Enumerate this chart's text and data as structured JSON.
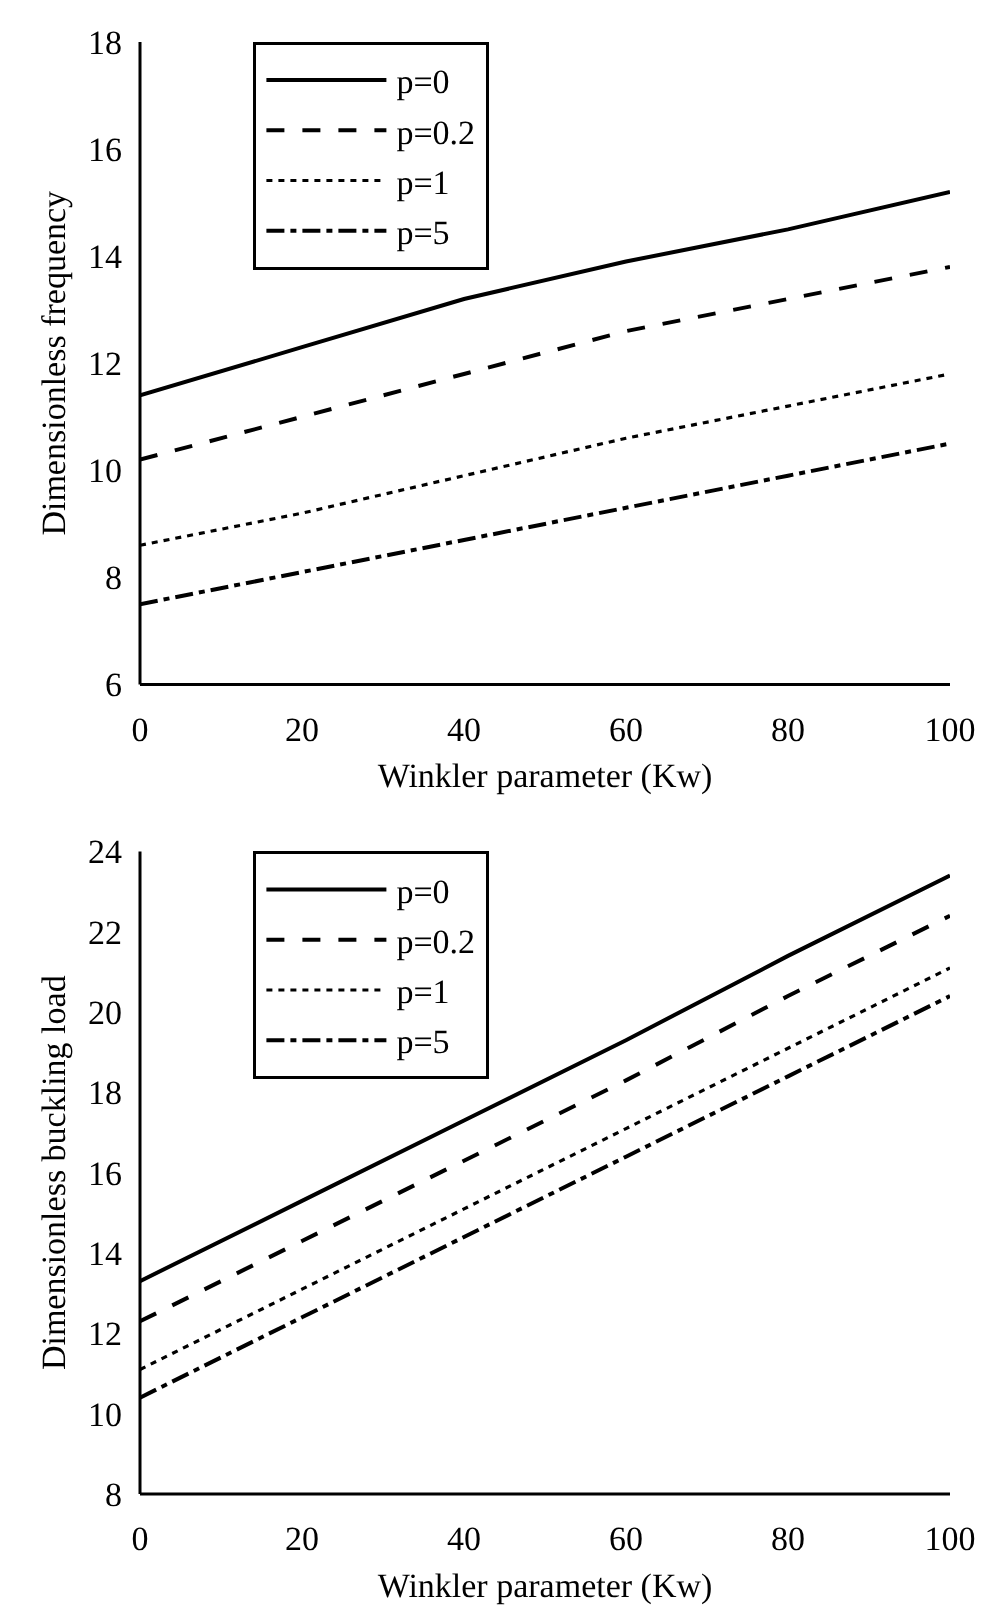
{
  "chart_data": [
    {
      "type": "line",
      "xlabel": "Winkler parameter (Kw)",
      "ylabel": "Dimensionless frequency",
      "x": [
        0,
        20,
        40,
        60,
        80,
        100
      ],
      "xlim": [
        0,
        100
      ],
      "xticks": [
        0,
        20,
        40,
        60,
        80,
        100
      ],
      "ylim": [
        6,
        18
      ],
      "yticks": [
        6,
        8,
        10,
        12,
        14,
        16,
        18
      ],
      "grid": false,
      "legend": "top left",
      "series": [
        {
          "name": "p=0",
          "color": "#000000",
          "line_style": "solid",
          "values": [
            11.4,
            12.3,
            13.2,
            13.9,
            14.5,
            15.2
          ]
        },
        {
          "name": "p=0.2",
          "color": "#000000",
          "line_style": "dashed",
          "values": [
            10.2,
            11.0,
            11.8,
            12.6,
            13.2,
            13.8
          ]
        },
        {
          "name": "p=1",
          "color": "#000000",
          "line_style": "dotted",
          "values": [
            8.6,
            9.2,
            9.9,
            10.6,
            11.2,
            11.8
          ]
        },
        {
          "name": "p=5",
          "color": "#000000",
          "line_style": "dashdot",
          "values": [
            7.5,
            8.1,
            8.7,
            9.3,
            9.9,
            10.5
          ]
        }
      ]
    },
    {
      "type": "line",
      "xlabel": "Winkler parameter (Kw)",
      "ylabel": "Dimensionless buckling load",
      "x": [
        0,
        20,
        40,
        60,
        80,
        100
      ],
      "xlim": [
        0,
        100
      ],
      "xticks": [
        0,
        20,
        40,
        60,
        80,
        100
      ],
      "ylim": [
        8,
        24
      ],
      "yticks": [
        8,
        10,
        12,
        14,
        16,
        18,
        20,
        22,
        24
      ],
      "grid": false,
      "legend": "top left",
      "series": [
        {
          "name": "p=0",
          "color": "#000000",
          "line_style": "solid",
          "values": [
            13.3,
            15.3,
            17.3,
            19.3,
            21.4,
            23.4
          ]
        },
        {
          "name": "p=0.2",
          "color": "#000000",
          "line_style": "dashed",
          "values": [
            12.3,
            14.3,
            16.3,
            18.3,
            20.4,
            22.4
          ]
        },
        {
          "name": "p=1",
          "color": "#000000",
          "line_style": "dotted",
          "values": [
            11.1,
            13.1,
            15.1,
            17.1,
            19.1,
            21.1
          ]
        },
        {
          "name": "p=5",
          "color": "#000000",
          "line_style": "dashdot",
          "values": [
            10.4,
            12.4,
            14.4,
            16.4,
            18.4,
            20.4
          ]
        }
      ]
    }
  ]
}
